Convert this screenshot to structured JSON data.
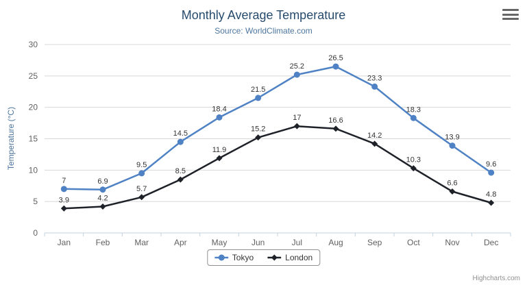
{
  "chart": {
    "credits": "Highcharts.com"
  },
  "colors": {
    "grid": "#d8d8d8",
    "axis_line": "#c0d0e0",
    "tick_label": "#606060",
    "title": "#274b6d",
    "subtitle": "#4d759e",
    "data_label": "#333333",
    "legend_border": "#909090",
    "credits": "#909090",
    "tokyo_series": "#4e82c4",
    "london_series": "#1e2228"
  },
  "chart_data": {
    "type": "line",
    "title": "Monthly Average Temperature",
    "subtitle": "Source: WorldClimate.com",
    "xlabel": "",
    "ylabel": "Temperature (°C)",
    "ylim": [
      0,
      30
    ],
    "ytick_step": 5,
    "grid": true,
    "legend_position": "bottom",
    "data_labels": true,
    "categories": [
      "Jan",
      "Feb",
      "Mar",
      "Apr",
      "May",
      "Jun",
      "Jul",
      "Aug",
      "Sep",
      "Oct",
      "Nov",
      "Dec"
    ],
    "series": [
      {
        "name": "Tokyo",
        "marker": "circle",
        "color": "#4e82c4",
        "values": [
          7,
          6.9,
          9.5,
          14.5,
          18.4,
          21.5,
          25.2,
          26.5,
          23.3,
          18.3,
          13.9,
          9.6
        ]
      },
      {
        "name": "London",
        "marker": "diamond",
        "color": "#1e2228",
        "values": [
          3.9,
          4.2,
          5.7,
          8.5,
          11.9,
          15.2,
          17,
          16.6,
          14.2,
          10.3,
          6.6,
          4.8
        ]
      }
    ]
  }
}
